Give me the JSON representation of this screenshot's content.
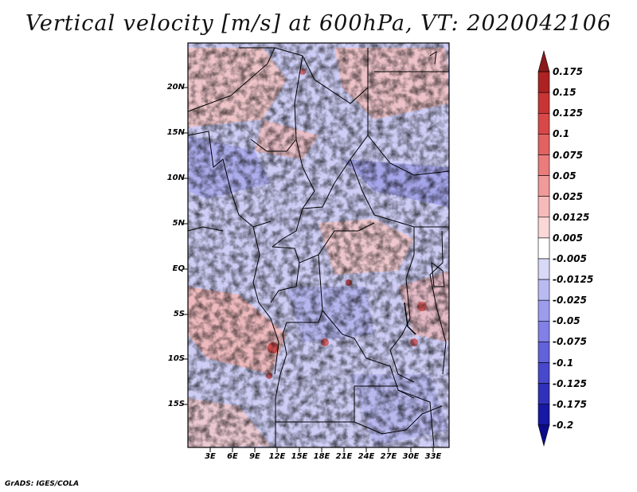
{
  "title": "Vertical velocity [m/s] at 600hPa, VT: 2020042106",
  "credit": "GrADS: IGES/COLA",
  "lat_labels": [
    "20N",
    "15N",
    "10N",
    "5N",
    "EQ",
    "5S",
    "10S",
    "15S"
  ],
  "lon_labels": [
    "3E",
    "6E",
    "9E",
    "12E",
    "15E",
    "18E",
    "21E",
    "24E",
    "27E",
    "30E",
    "33E"
  ],
  "colorbar": {
    "labels": [
      "0.175",
      "0.15",
      "0.125",
      "0.1",
      "0.075",
      "0.05",
      "0.025",
      "0.0125",
      "0.005",
      "-0.005",
      "-0.0125",
      "-0.025",
      "-0.05",
      "-0.075",
      "-0.1",
      "-0.125",
      "-0.175",
      "-0.2"
    ],
    "colors": [
      "#8b1a1a",
      "#ad2222",
      "#c83434",
      "#d84848",
      "#e26262",
      "#ea7c7c",
      "#f19a9a",
      "#f7baba",
      "#fbd8d8",
      "#ffffff",
      "#d8d8f7",
      "#babaf3",
      "#9c9cee",
      "#8080e6",
      "#6262da",
      "#4848cc",
      "#3030bb",
      "#1818a4",
      "#0c0c8a"
    ]
  },
  "map": {
    "lon_range": [
      0,
      35
    ],
    "lat_range": [
      -20,
      25
    ],
    "background_blue": "#c8c8f4",
    "background_red": "#f4caca",
    "border_color": "#000000"
  }
}
